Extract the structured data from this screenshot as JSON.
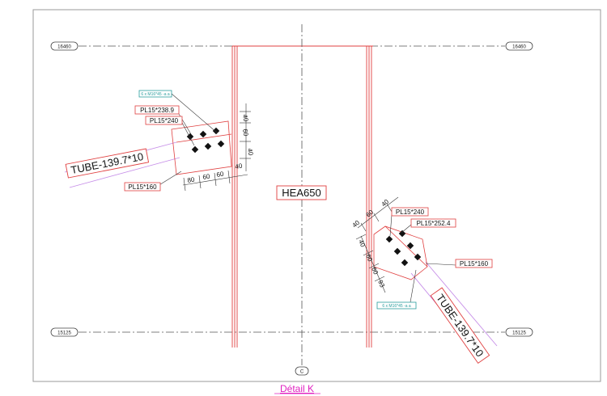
{
  "levels": {
    "top": "16460",
    "bottom": "15125"
  },
  "axis": {
    "grid_label": "C"
  },
  "column": {
    "profile": "HEA650"
  },
  "title": {
    "text": "Détail K"
  },
  "left_connection": {
    "bolts_tag": "6 x M16*45 -a a",
    "plate_1": "PL15*238.9",
    "plate_2": "PL15*240",
    "tube": "TUBE-139.7*10",
    "gusset": "PL15*160",
    "dims": [
      "40",
      "60",
      "40",
      "40",
      "80",
      "60",
      "60"
    ]
  },
  "right_connection": {
    "bolts_tag": "6 x M16*45 -a a",
    "plate_1": "PL15*240",
    "plate_2": "PL15*252.4",
    "tube": "TUBE-139.7*10",
    "gusset": "PL15*160",
    "dims": [
      "40",
      "60",
      "40",
      "40",
      "60",
      "60",
      "93"
    ]
  },
  "colors": {
    "frame": "#9a9a9a",
    "axis_line": "#555555",
    "steel_red": "#e04040",
    "tag_teal": "#2a9d9d",
    "tube_line": "#c68ee8",
    "title_magenta": "#e020c0"
  }
}
